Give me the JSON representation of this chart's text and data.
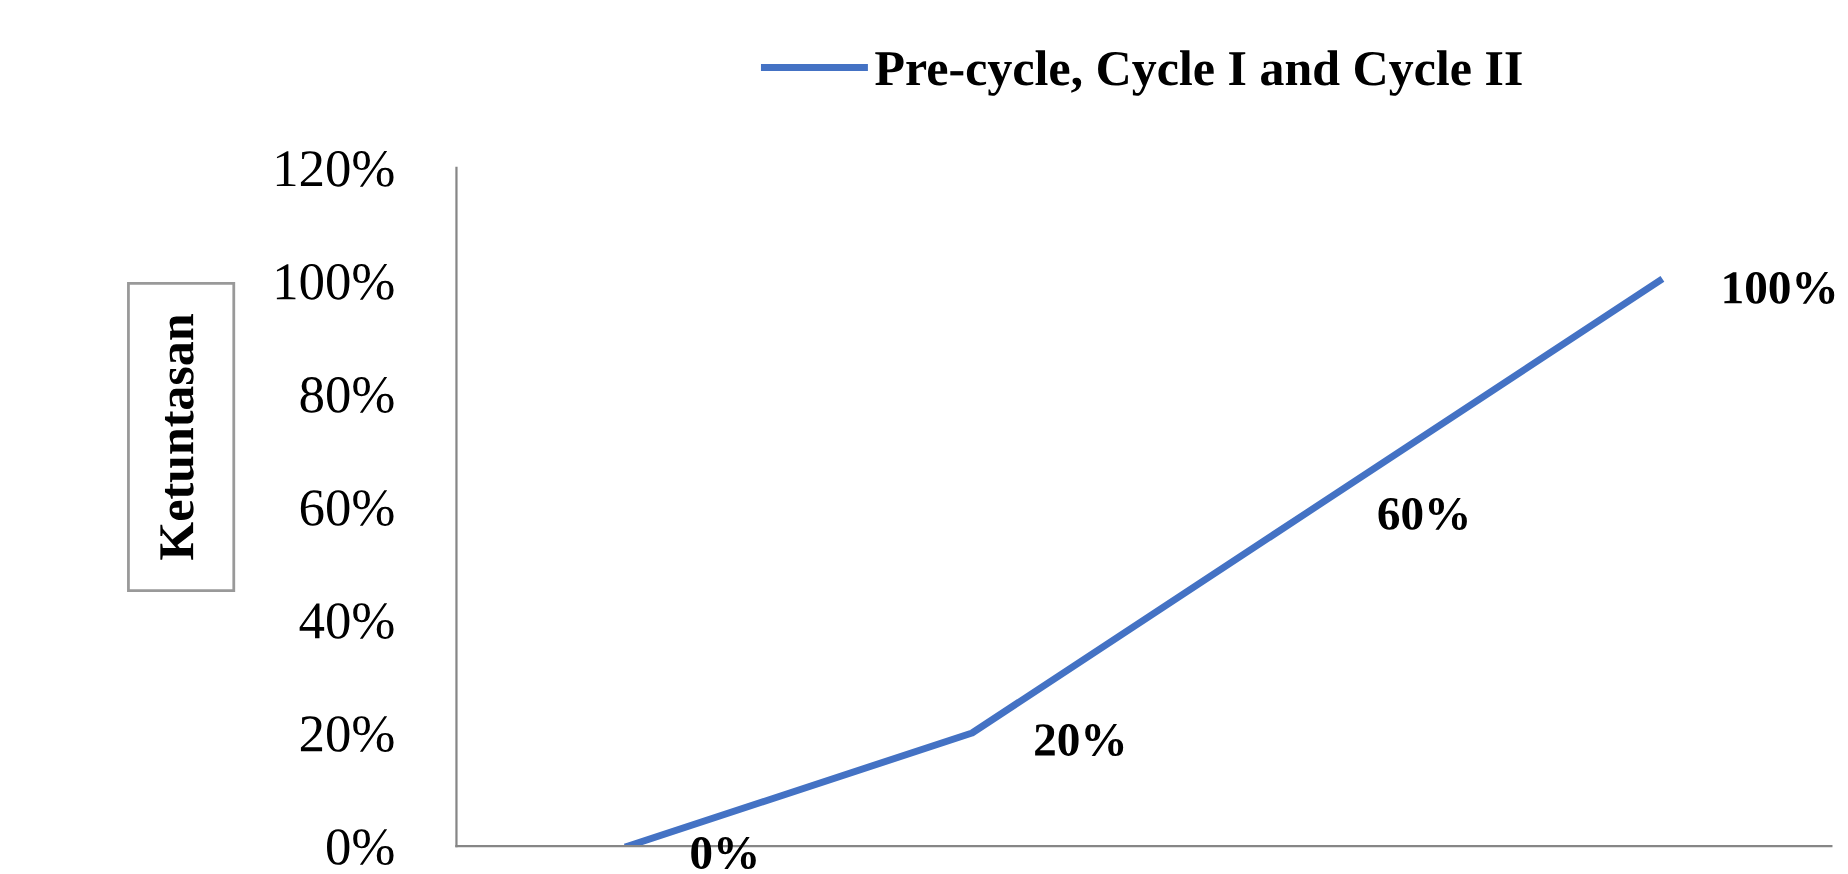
{
  "chart_data": {
    "type": "line",
    "ylabel": "Ketuntasan",
    "categories": [
      null,
      null,
      null,
      null
    ],
    "series": [
      {
        "name": "Pre-cycle, Cycle I and Cycle II",
        "color": "#4472c4",
        "values": [
          0,
          20,
          60,
          100
        ],
        "value_labels": [
          "0%",
          "20%",
          "60%",
          "100%"
        ]
      }
    ],
    "ylim": [
      0,
      120
    ],
    "yticks": [
      {
        "value": 0,
        "label": "0%"
      },
      {
        "value": 20,
        "label": "20%"
      },
      {
        "value": 40,
        "label": "40%"
      },
      {
        "value": 60,
        "label": "60%"
      },
      {
        "value": 80,
        "label": "80%"
      },
      {
        "value": 100,
        "label": "100%"
      },
      {
        "value": 120,
        "label": "120%"
      }
    ],
    "legend": "top",
    "grid": false,
    "marker": "none",
    "line_style": "solid"
  }
}
